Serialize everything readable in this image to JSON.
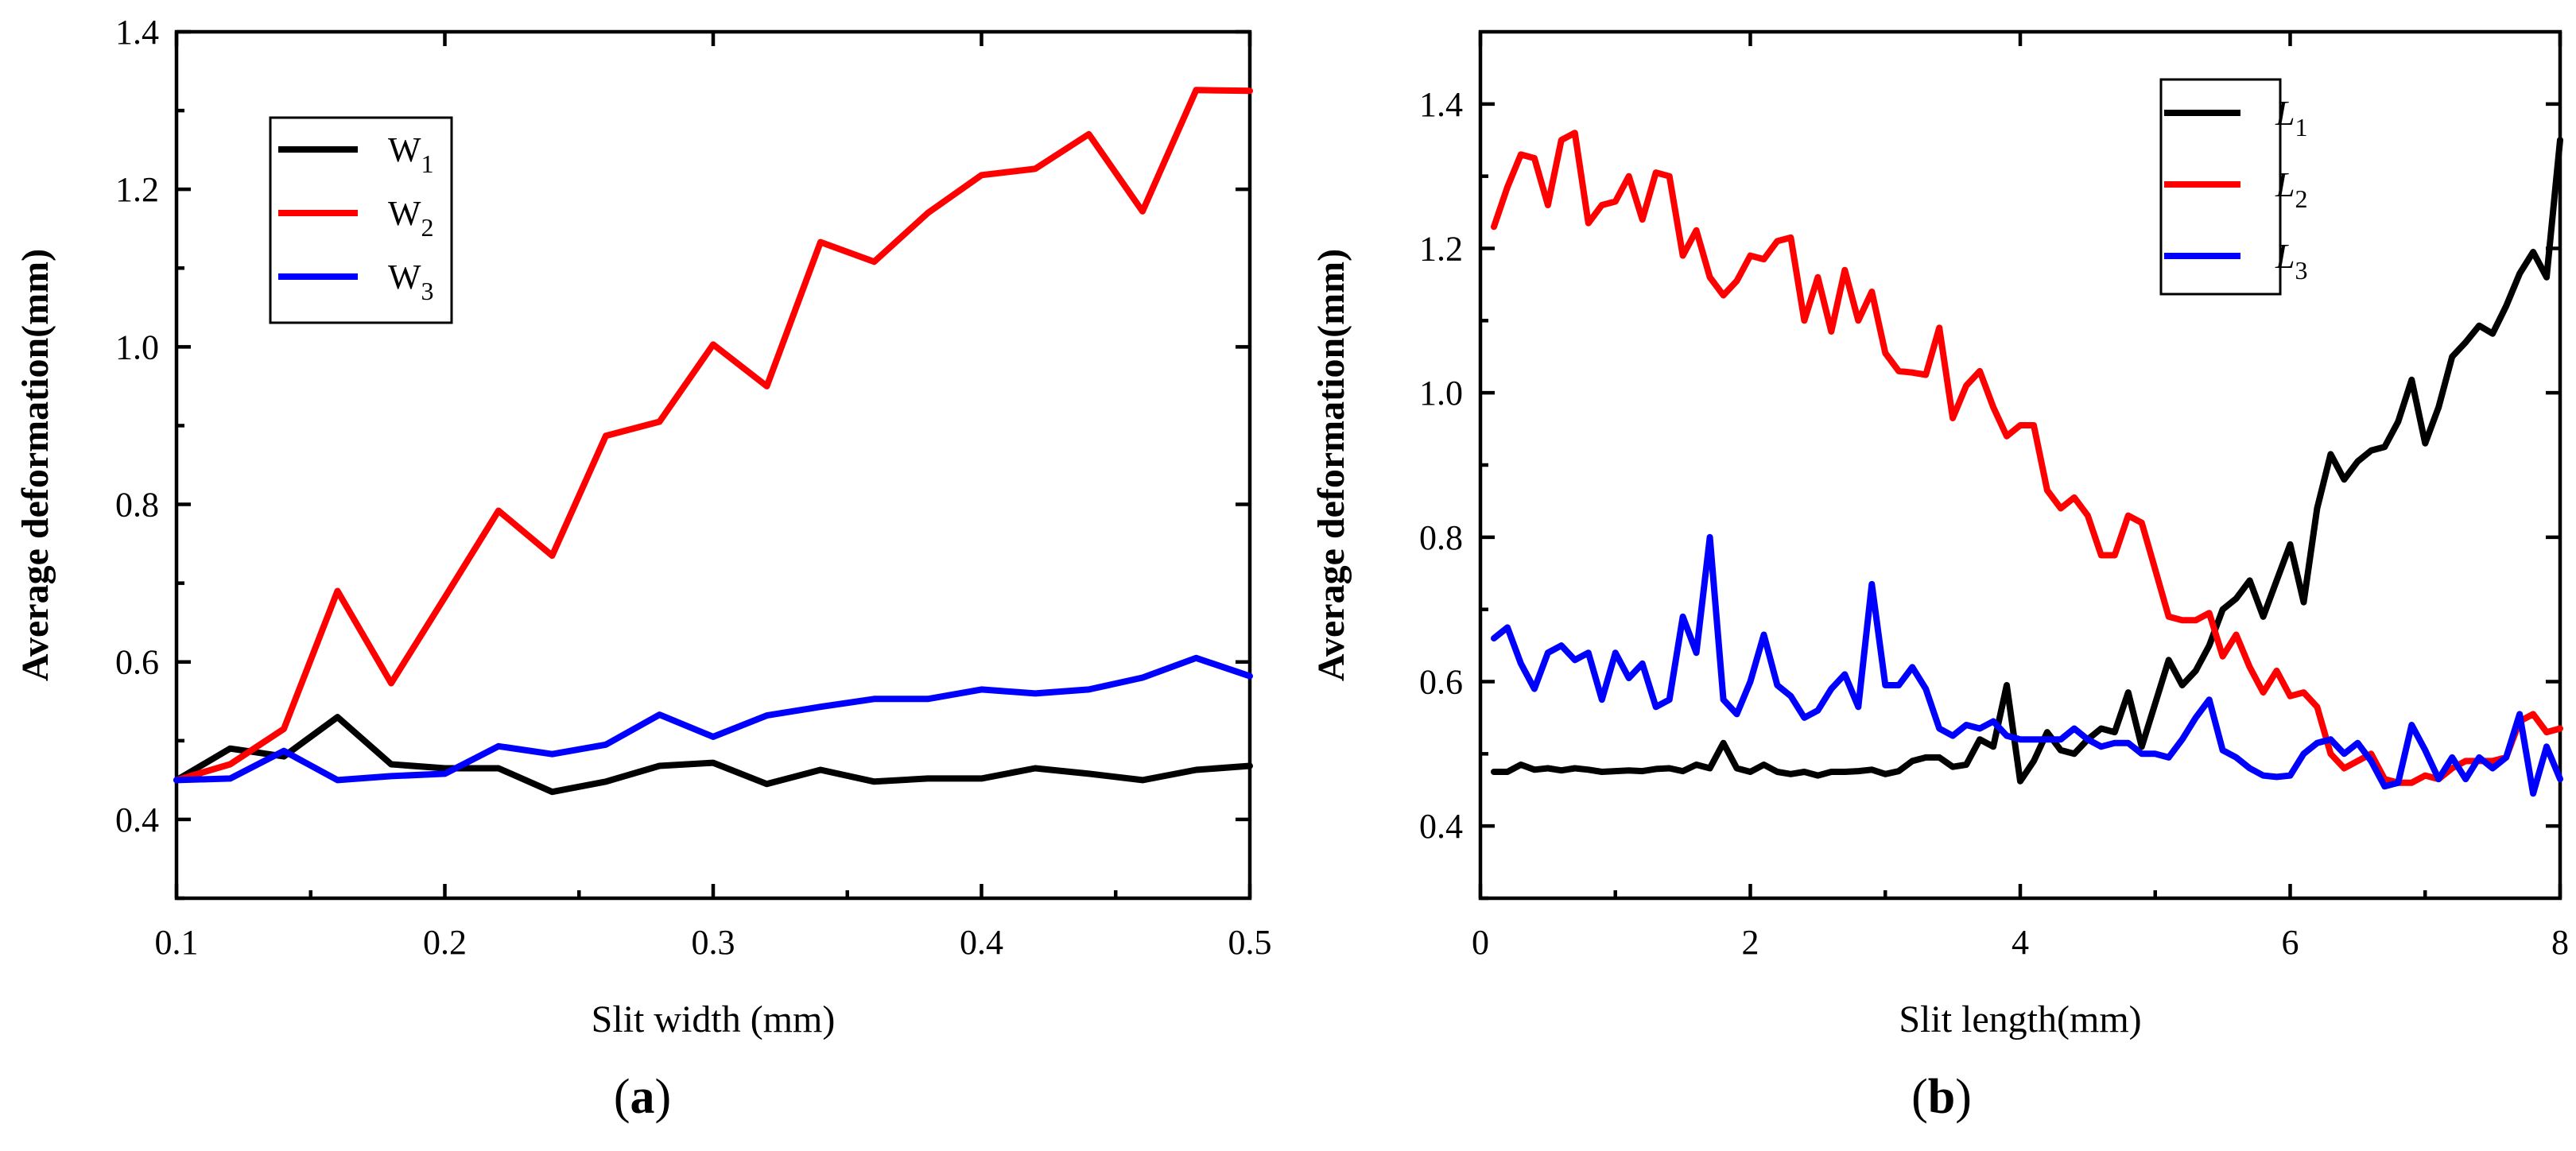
{
  "chart_data": [
    {
      "type": "line",
      "panel_label": "(a)",
      "panel_letter": "a",
      "title": "",
      "xlabel": "Slit width (mm)",
      "ylabel": "Average deformation(mm)",
      "xlim": [
        0.1,
        0.5
      ],
      "ylim": [
        0.3,
        1.4
      ],
      "xticks": [
        0.1,
        0.2,
        0.3,
        0.4,
        0.5
      ],
      "xtick_labels": [
        "0.1",
        "0.2",
        "0.3",
        "0.4",
        "0.5"
      ],
      "yticks": [
        0.4,
        0.6,
        0.8,
        1.0,
        1.2,
        1.4
      ],
      "ytick_labels": [
        "0.4",
        "0.6",
        "0.8",
        "1.0",
        "1.2",
        "1.4"
      ],
      "legend_position": "top-left",
      "x": [
        0.1,
        0.12,
        0.14,
        0.16,
        0.18,
        0.2,
        0.22,
        0.24,
        0.26,
        0.28,
        0.3,
        0.32,
        0.34,
        0.36,
        0.38,
        0.4,
        0.42,
        0.44,
        0.46,
        0.48,
        0.5
      ],
      "series": [
        {
          "name": "W1",
          "base": "W",
          "sub": "1",
          "italic": false,
          "color": "#000000",
          "values": [
            0.45,
            0.49,
            0.48,
            0.53,
            0.47,
            0.465,
            0.465,
            0.435,
            0.448,
            0.468,
            0.472,
            0.445,
            0.463,
            0.448,
            0.452,
            0.452,
            0.465,
            0.458,
            0.45,
            0.463,
            0.468
          ]
        },
        {
          "name": "W2",
          "base": "W",
          "sub": "2",
          "italic": false,
          "color": "#ff0000",
          "values": [
            0.45,
            0.47,
            0.515,
            0.69,
            0.573,
            0.682,
            0.792,
            0.735,
            0.887,
            0.905,
            1.003,
            0.95,
            1.133,
            1.108,
            1.17,
            1.218,
            1.226,
            1.27,
            1.172,
            1.326,
            1.325
          ]
        },
        {
          "name": "W3",
          "base": "W",
          "sub": "3",
          "italic": false,
          "color": "#0000ff",
          "values": [
            0.45,
            0.452,
            0.487,
            0.45,
            0.455,
            0.458,
            0.493,
            0.483,
            0.495,
            0.533,
            0.505,
            0.532,
            0.543,
            0.553,
            0.553,
            0.565,
            0.56,
            0.565,
            0.58,
            0.605,
            0.582
          ]
        }
      ]
    },
    {
      "type": "line",
      "panel_label": "(b)",
      "panel_letter": "b",
      "title": "",
      "xlabel": "Slit length(mm)",
      "ylabel": "Average deformation(mm)",
      "xlim": [
        0,
        8
      ],
      "ylim": [
        0.3,
        1.5
      ],
      "xticks": [
        0,
        2,
        4,
        6,
        8
      ],
      "xtick_labels": [
        "0",
        "2",
        "4",
        "6",
        "8"
      ],
      "yticks": [
        0.4,
        0.6,
        0.8,
        1.0,
        1.2,
        1.4
      ],
      "ytick_labels": [
        "0.4",
        "0.6",
        "0.8",
        "1.0",
        "1.2",
        "1.4"
      ],
      "legend_position": "top-right",
      "x": [
        0.1,
        0.2,
        0.3,
        0.4,
        0.5,
        0.6,
        0.7,
        0.8,
        0.9,
        1.0,
        1.1,
        1.2,
        1.3,
        1.4,
        1.5,
        1.6,
        1.7,
        1.8,
        1.9,
        2.0,
        2.1,
        2.2,
        2.3,
        2.4,
        2.5,
        2.6,
        2.7,
        2.8,
        2.9,
        3.0,
        3.1,
        3.2,
        3.3,
        3.4,
        3.5,
        3.6,
        3.7,
        3.8,
        3.9,
        4.0,
        4.1,
        4.2,
        4.3,
        4.4,
        4.5,
        4.6,
        4.7,
        4.8,
        4.9,
        5.0,
        5.1,
        5.2,
        5.3,
        5.4,
        5.5,
        5.6,
        5.7,
        5.8,
        5.9,
        6.0,
        6.1,
        6.2,
        6.3,
        6.4,
        6.5,
        6.6,
        6.7,
        6.8,
        6.9,
        7.0,
        7.1,
        7.2,
        7.3,
        7.4,
        7.5,
        7.6,
        7.7,
        7.8,
        7.9,
        8.0
      ],
      "series": [
        {
          "name": "L1",
          "base": "L",
          "sub": "1",
          "italic": true,
          "color": "#000000",
          "values": [
            0.475,
            0.475,
            0.485,
            0.478,
            0.48,
            0.477,
            0.48,
            0.478,
            0.475,
            0.476,
            0.477,
            0.476,
            0.479,
            0.48,
            0.476,
            0.485,
            0.48,
            0.515,
            0.48,
            0.475,
            0.485,
            0.475,
            0.472,
            0.475,
            0.47,
            0.475,
            0.475,
            0.476,
            0.478,
            0.472,
            0.476,
            0.49,
            0.495,
            0.495,
            0.482,
            0.485,
            0.52,
            0.51,
            0.595,
            0.462,
            0.49,
            0.53,
            0.505,
            0.5,
            0.52,
            0.535,
            0.53,
            0.585,
            0.51,
            0.57,
            0.63,
            0.595,
            0.615,
            0.65,
            0.7,
            0.715,
            0.74,
            0.69,
            0.74,
            0.79,
            0.71,
            0.84,
            0.915,
            0.88,
            0.905,
            0.92,
            0.925,
            0.96,
            1.018,
            0.93,
            0.98,
            1.05,
            1.07,
            1.093,
            1.082,
            1.12,
            1.165,
            1.195,
            1.16,
            1.35
          ]
        },
        {
          "name": "L2",
          "base": "L",
          "sub": "2",
          "italic": true,
          "color": "#ff0000",
          "values": [
            1.23,
            1.285,
            1.33,
            1.325,
            1.26,
            1.35,
            1.36,
            1.235,
            1.26,
            1.265,
            1.3,
            1.24,
            1.305,
            1.3,
            1.19,
            1.225,
            1.16,
            1.135,
            1.155,
            1.19,
            1.185,
            1.21,
            1.215,
            1.1,
            1.16,
            1.085,
            1.17,
            1.1,
            1.14,
            1.055,
            1.03,
            1.028,
            1.025,
            1.09,
            0.965,
            1.01,
            1.03,
            0.98,
            0.94,
            0.955,
            0.955,
            0.865,
            0.84,
            0.855,
            0.83,
            0.775,
            0.775,
            0.83,
            0.82,
            0.755,
            0.69,
            0.685,
            0.685,
            0.695,
            0.635,
            0.665,
            0.62,
            0.585,
            0.615,
            0.58,
            0.585,
            0.565,
            0.5,
            0.48,
            0.49,
            0.5,
            0.465,
            0.46,
            0.46,
            0.47,
            0.465,
            0.48,
            0.49,
            0.49,
            0.49,
            0.495,
            0.545,
            0.555,
            0.53,
            0.535
          ]
        },
        {
          "name": "L3",
          "base": "L",
          "sub": "3",
          "italic": true,
          "color": "#0000ff",
          "values": [
            0.66,
            0.675,
            0.625,
            0.59,
            0.64,
            0.65,
            0.63,
            0.64,
            0.575,
            0.64,
            0.605,
            0.625,
            0.565,
            0.575,
            0.69,
            0.64,
            0.8,
            0.575,
            0.555,
            0.6,
            0.665,
            0.595,
            0.58,
            0.55,
            0.56,
            0.59,
            0.61,
            0.565,
            0.735,
            0.595,
            0.595,
            0.62,
            0.59,
            0.535,
            0.525,
            0.54,
            0.535,
            0.545,
            0.525,
            0.52,
            0.52,
            0.52,
            0.52,
            0.535,
            0.52,
            0.51,
            0.515,
            0.515,
            0.5,
            0.5,
            0.495,
            0.52,
            0.55,
            0.575,
            0.505,
            0.495,
            0.48,
            0.47,
            0.468,
            0.47,
            0.5,
            0.515,
            0.52,
            0.5,
            0.515,
            0.49,
            0.455,
            0.46,
            0.54,
            0.505,
            0.465,
            0.495,
            0.465,
            0.495,
            0.48,
            0.495,
            0.555,
            0.445,
            0.51,
            0.465
          ]
        }
      ]
    }
  ]
}
